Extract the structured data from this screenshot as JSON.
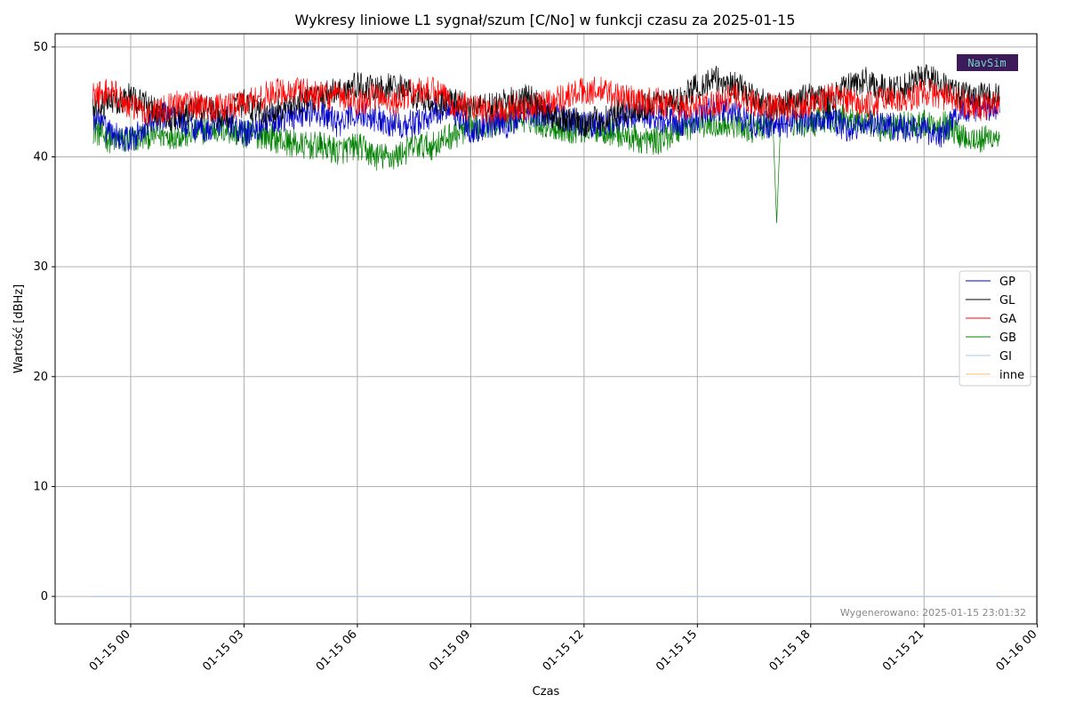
{
  "chart_data": {
    "type": "line",
    "title": "Wykresy liniowe L1 sygnał/szum [C/No] w funkcji czasu za 2025-01-15",
    "xlabel": "Czas",
    "ylabel": "Wartość [dBHz]",
    "x_range": [
      "2025-01-14 22:00",
      "2025-01-15 23:59"
    ],
    "ylim": [
      -2.5,
      51.2
    ],
    "x_ticks": [
      {
        "value": "2025-01-15 00:00",
        "label": "01-15 00"
      },
      {
        "value": "2025-01-15 03:00",
        "label": "01-15 03"
      },
      {
        "value": "2025-01-15 06:00",
        "label": "01-15 06"
      },
      {
        "value": "2025-01-15 09:00",
        "label": "01-15 09"
      },
      {
        "value": "2025-01-15 12:00",
        "label": "01-15 12"
      },
      {
        "value": "2025-01-15 15:00",
        "label": "01-15 15"
      },
      {
        "value": "2025-01-15 18:00",
        "label": "01-15 18"
      },
      {
        "value": "2025-01-15 21:00",
        "label": "01-15 21"
      },
      {
        "value": "2025-01-16 00:00",
        "label": "01-16 00"
      }
    ],
    "y_ticks": [
      0,
      10,
      20,
      30,
      40,
      50
    ],
    "grid": true,
    "legend_position": "center-right",
    "series": [
      {
        "name": "GP",
        "color": "#0000cc",
        "x_hours": [
          -1.0,
          -0.5,
          0,
          0.5,
          1,
          1.5,
          2,
          2.5,
          3,
          3.5,
          4,
          4.5,
          5,
          5.5,
          6,
          6.5,
          7,
          7.5,
          8,
          8.5,
          9,
          9.5,
          10,
          10.5,
          11,
          11.5,
          12,
          12.5,
          13,
          13.5,
          14,
          14.5,
          15,
          15.5,
          16,
          16.5,
          17,
          17.5,
          18,
          18.5,
          19,
          19.5,
          20,
          20.5,
          21,
          21.5,
          22,
          22.5,
          23
        ],
        "values": [
          43.5,
          42.0,
          41.5,
          43.0,
          44.0,
          43.0,
          42.5,
          43.5,
          42.0,
          43.0,
          43.5,
          44.0,
          44.0,
          43.0,
          44.0,
          43.5,
          43.0,
          43.0,
          44.0,
          44.5,
          42.5,
          43.0,
          43.0,
          44.0,
          44.0,
          43.5,
          43.0,
          43.0,
          43.5,
          44.0,
          43.5,
          43.0,
          43.5,
          44.5,
          44.0,
          43.0,
          43.0,
          43.0,
          43.5,
          43.5,
          42.5,
          43.0,
          43.0,
          42.5,
          42.5,
          42.0,
          44.5,
          44.5,
          44.0
        ]
      },
      {
        "name": "GL",
        "color": "#000000",
        "x_hours": [
          -1.0,
          -0.5,
          0,
          0.5,
          1,
          1.5,
          2,
          2.5,
          3,
          3.5,
          4,
          4.5,
          5,
          5.5,
          6,
          6.5,
          7,
          7.5,
          8,
          8.5,
          9,
          9.5,
          10,
          10.5,
          11,
          11.5,
          12,
          12.5,
          13,
          13.5,
          14,
          14.5,
          15,
          15.5,
          16,
          16.5,
          17,
          17.5,
          18,
          18.5,
          19,
          19.5,
          20,
          20.5,
          21,
          21.5,
          22,
          22.5,
          23
        ],
        "values": [
          44.5,
          45.0,
          45.5,
          44.5,
          43.5,
          44.0,
          44.5,
          43.5,
          45.0,
          44.0,
          44.5,
          45.0,
          45.5,
          46.0,
          46.5,
          46.0,
          46.5,
          45.5,
          45.0,
          45.0,
          44.5,
          44.5,
          45.0,
          45.5,
          44.0,
          43.5,
          43.0,
          43.5,
          44.0,
          44.5,
          45.0,
          45.0,
          46.5,
          47.0,
          46.5,
          45.5,
          44.5,
          45.0,
          45.5,
          45.0,
          46.5,
          47.0,
          46.0,
          46.5,
          47.5,
          46.5,
          45.5,
          45.5,
          45.5
        ]
      },
      {
        "name": "GA",
        "color": "#ff0000",
        "x_hours": [
          -1.0,
          -0.5,
          0,
          0.5,
          1,
          1.5,
          2,
          2.5,
          3,
          3.5,
          4,
          4.5,
          5,
          5.5,
          6,
          6.5,
          7,
          7.5,
          8,
          8.5,
          9,
          9.5,
          10,
          10.5,
          11,
          11.5,
          12,
          12.5,
          13,
          13.5,
          14,
          14.5,
          15,
          15.5,
          16,
          16.5,
          17,
          17.5,
          18,
          18.5,
          19,
          19.5,
          20,
          20.5,
          21,
          21.5,
          22,
          22.5,
          23
        ],
        "values": [
          45.5,
          46.0,
          44.5,
          44.0,
          44.5,
          45.0,
          44.5,
          44.5,
          45.0,
          45.5,
          46.0,
          46.0,
          45.5,
          45.5,
          45.0,
          45.5,
          45.0,
          46.0,
          46.0,
          45.0,
          44.5,
          44.0,
          44.5,
          44.5,
          45.0,
          45.5,
          46.0,
          46.0,
          45.5,
          45.0,
          45.0,
          44.5,
          44.5,
          45.0,
          45.5,
          45.0,
          44.5,
          44.5,
          45.0,
          45.5,
          45.0,
          44.5,
          45.5,
          45.0,
          46.0,
          45.5,
          45.0,
          44.5,
          45.0
        ]
      },
      {
        "name": "GB",
        "color": "#008000",
        "x_hours": [
          -1.0,
          -0.5,
          0,
          0.5,
          1,
          1.5,
          2,
          2.5,
          3,
          3.5,
          4,
          4.5,
          5,
          5.5,
          6,
          6.5,
          7,
          7.5,
          8,
          8.5,
          9,
          9.5,
          10,
          10.5,
          11,
          11.5,
          12,
          12.5,
          13,
          13.5,
          14,
          14.5,
          15,
          15.5,
          16,
          16.5,
          17,
          17.1,
          17.2,
          17.5,
          18,
          18.5,
          19,
          19.5,
          20,
          20.5,
          21,
          21.5,
          22,
          22.5,
          23
        ],
        "values": [
          42.5,
          41.5,
          41.5,
          42.0,
          42.0,
          42.0,
          42.5,
          42.5,
          42.0,
          42.0,
          41.5,
          41.0,
          41.0,
          40.5,
          41.0,
          40.0,
          40.0,
          41.0,
          41.0,
          42.0,
          42.5,
          43.0,
          43.5,
          43.5,
          43.0,
          42.5,
          42.5,
          42.5,
          42.0,
          41.5,
          41.5,
          42.5,
          43.0,
          43.0,
          43.0,
          42.5,
          43.0,
          34.0,
          43.0,
          43.0,
          43.0,
          43.5,
          43.5,
          43.0,
          42.5,
          43.0,
          43.0,
          43.0,
          42.0,
          41.5,
          42.0
        ]
      },
      {
        "name": "GI",
        "color": "#aec7e8",
        "x_hours": [
          -1.0,
          23.0
        ],
        "values": [
          0.0,
          0.0
        ]
      },
      {
        "name": "inne",
        "color": "#ffbb78",
        "x_hours": [
          -1.0,
          23.0
        ],
        "values": [
          0.0,
          0.0
        ]
      }
    ],
    "footer_text": "Wygenerowano: 2025-01-15 23:01:32",
    "logo_text": "NavSim"
  }
}
